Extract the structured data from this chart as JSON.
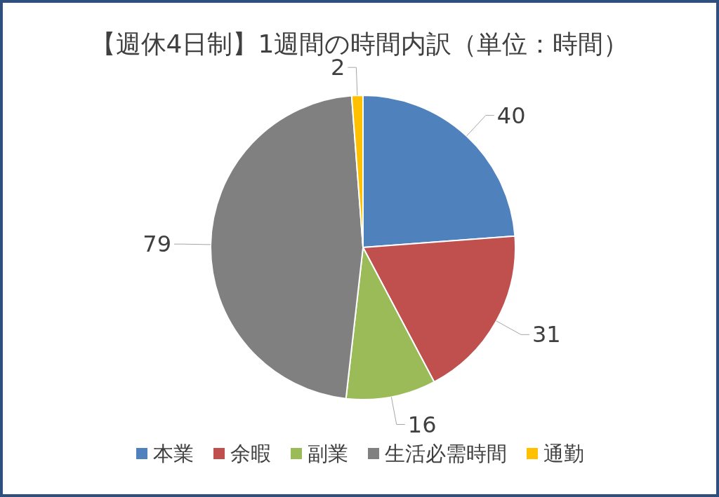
{
  "chart_data": {
    "type": "pie",
    "title": "【週休4日制】1週間の時間内訳（単位：時間）",
    "categories": [
      "本業",
      "余暇",
      "副業",
      "生活必需時間",
      "通勤"
    ],
    "values": [
      40,
      31,
      16,
      79,
      2
    ],
    "colors": [
      "#4f81bd",
      "#c0504d",
      "#9bbb59",
      "#808080",
      "#ffc000"
    ],
    "data_labels": true,
    "legend": "bottom"
  }
}
